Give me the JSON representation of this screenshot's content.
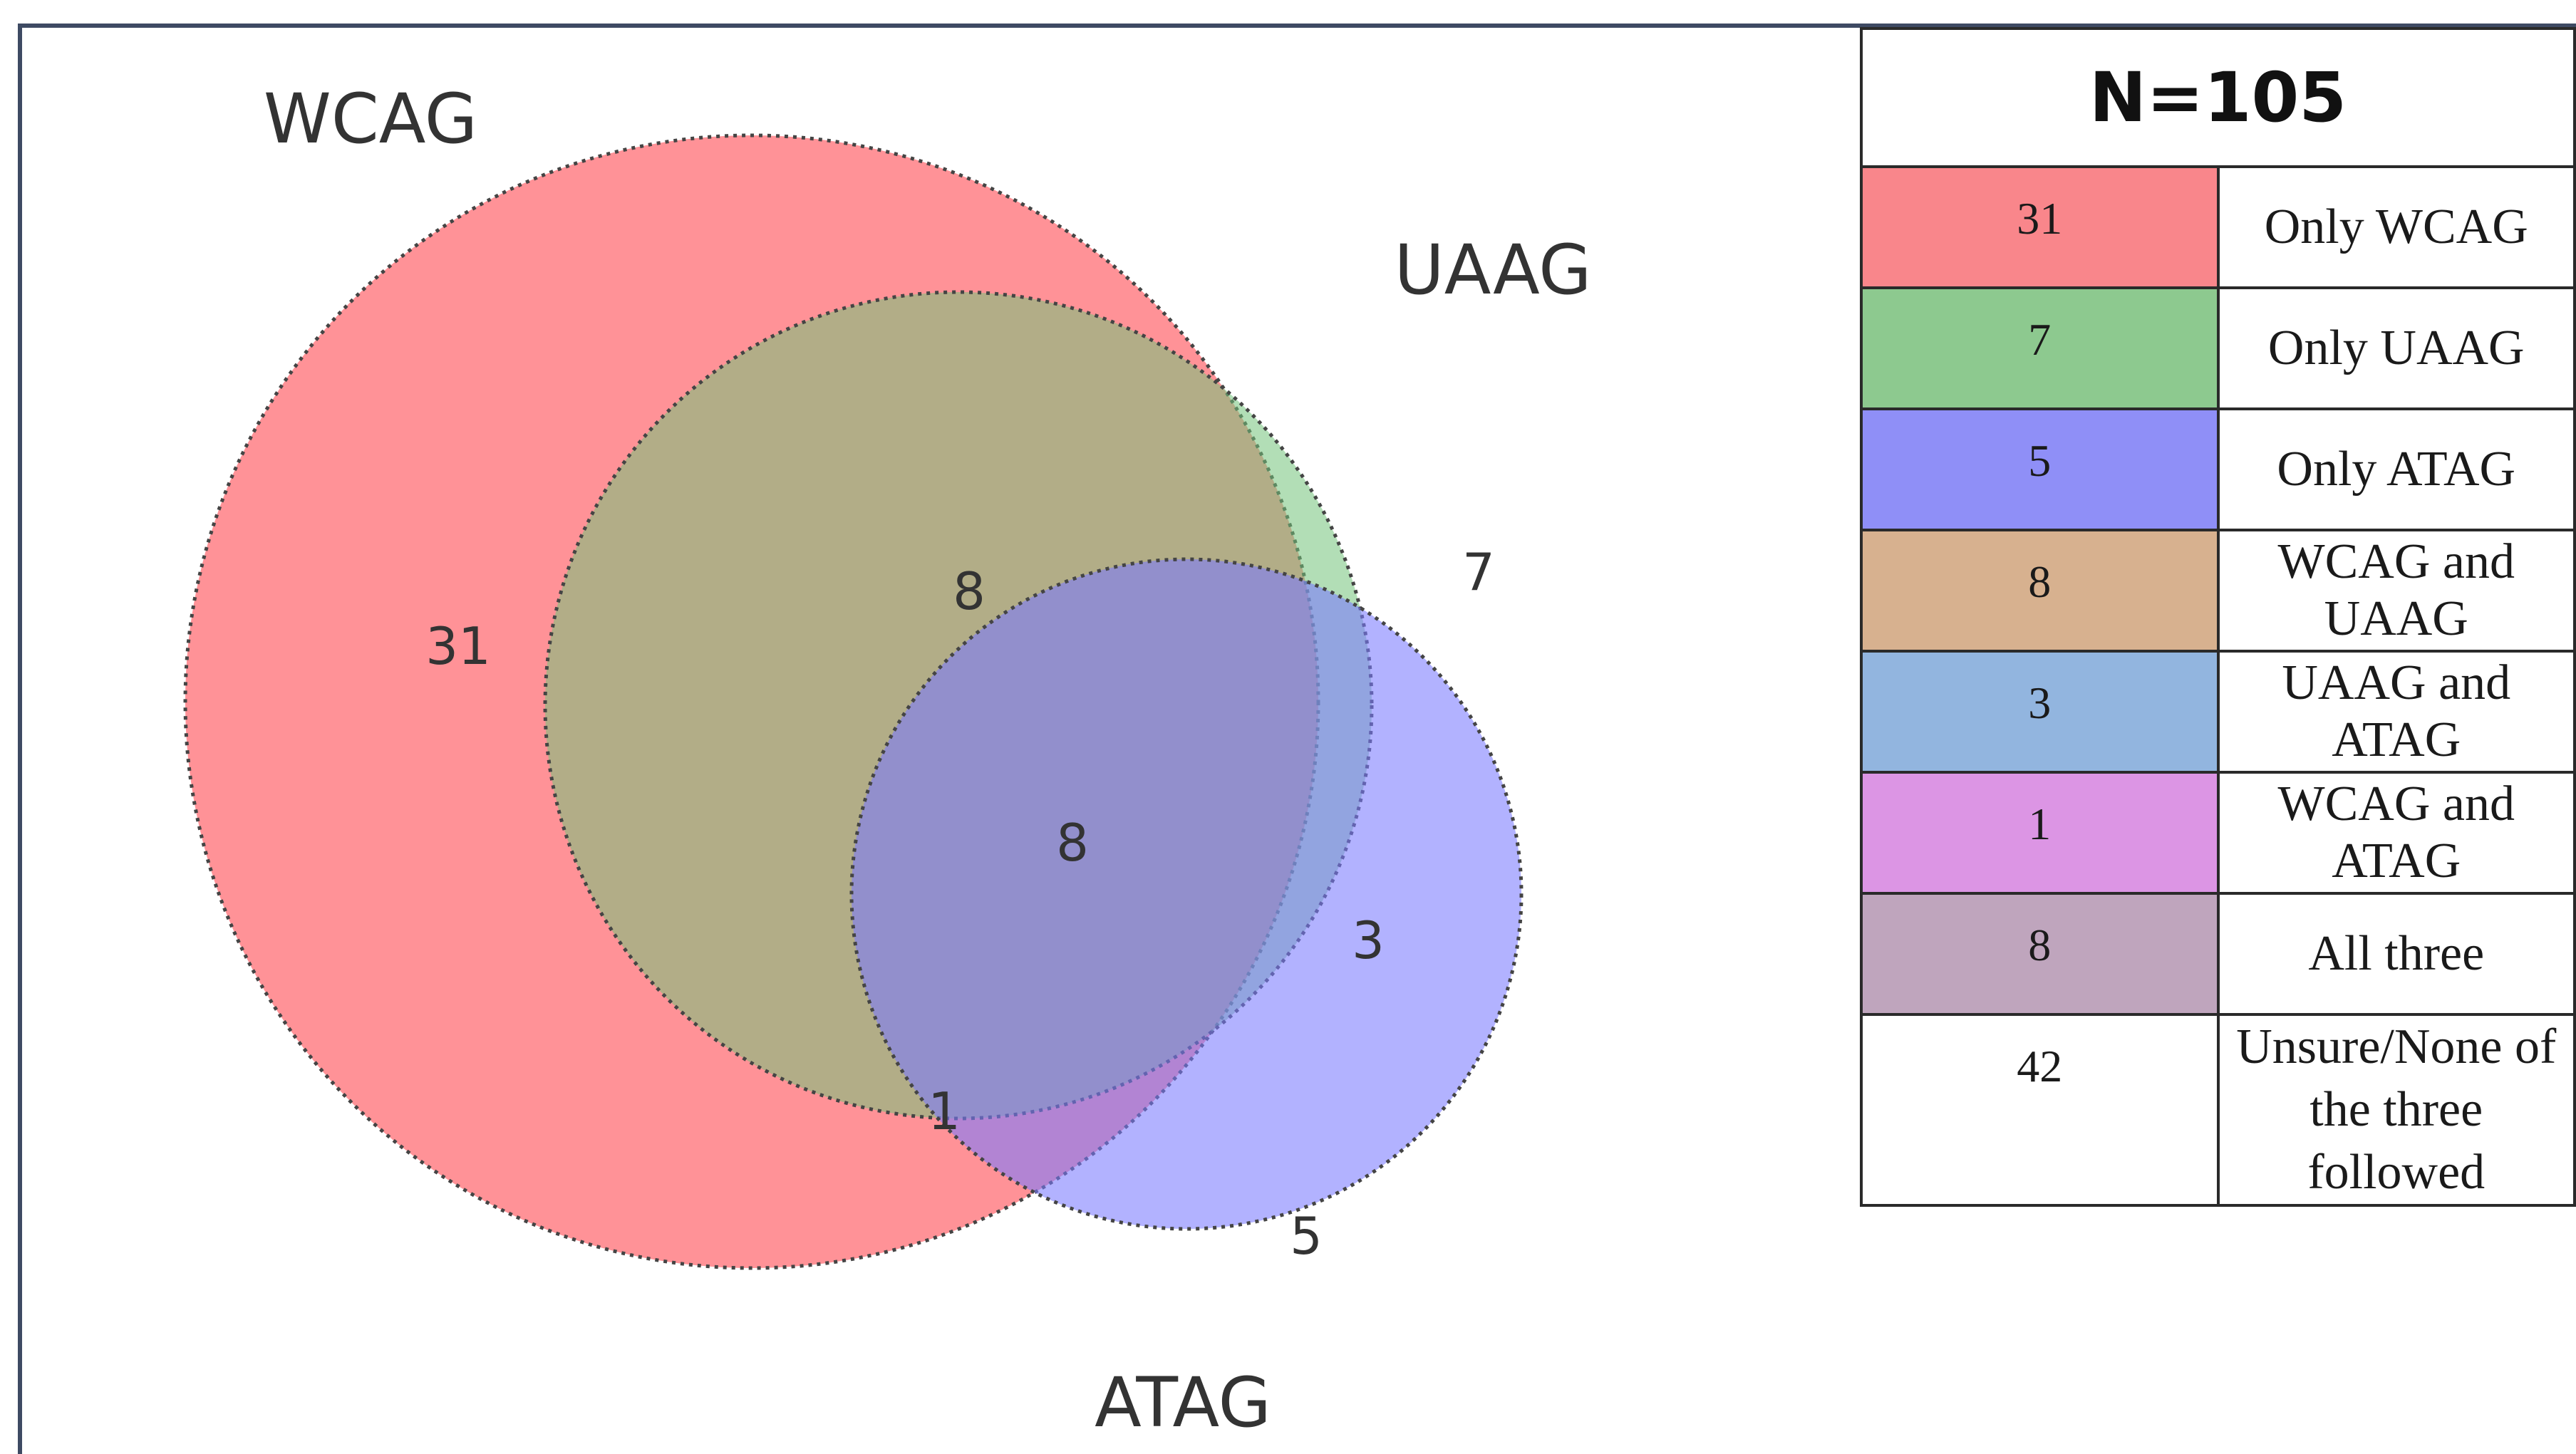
{
  "diagram": {
    "sets": [
      {
        "name": "WCAG",
        "color": "#ff7a80"
      },
      {
        "name": "UAAG",
        "color": "#72c27a"
      },
      {
        "name": "ATAG",
        "color": "#7b7bff"
      }
    ],
    "regions": {
      "only_wcag": "31",
      "only_uaag": "7",
      "only_atag": "5",
      "wcag_uaag": "8",
      "uaag_atag": "3",
      "wcag_atag": "1",
      "all_three": "8"
    }
  },
  "legend": {
    "title": "N=105",
    "rows": [
      {
        "count": "31",
        "label": "Only WCAG",
        "color": "#f9868b"
      },
      {
        "count": "7",
        "label": "Only UAAG",
        "color": "#8dc98f"
      },
      {
        "count": "5",
        "label": "Only ATAG",
        "color": "#8f8ff7"
      },
      {
        "count": "8",
        "label": "WCAG and UAAG",
        "color": "#d7b18f"
      },
      {
        "count": "3",
        "label": "UAAG and ATAG",
        "color": "#92b5df"
      },
      {
        "count": "1",
        "label": "WCAG and ATAG",
        "color": "#dc95e4"
      },
      {
        "count": "8",
        "label": "All three",
        "color": "#bfa5bd"
      },
      {
        "count": "42",
        "label": "Unsure/None of the three followed",
        "color": "#ffffff"
      }
    ]
  }
}
